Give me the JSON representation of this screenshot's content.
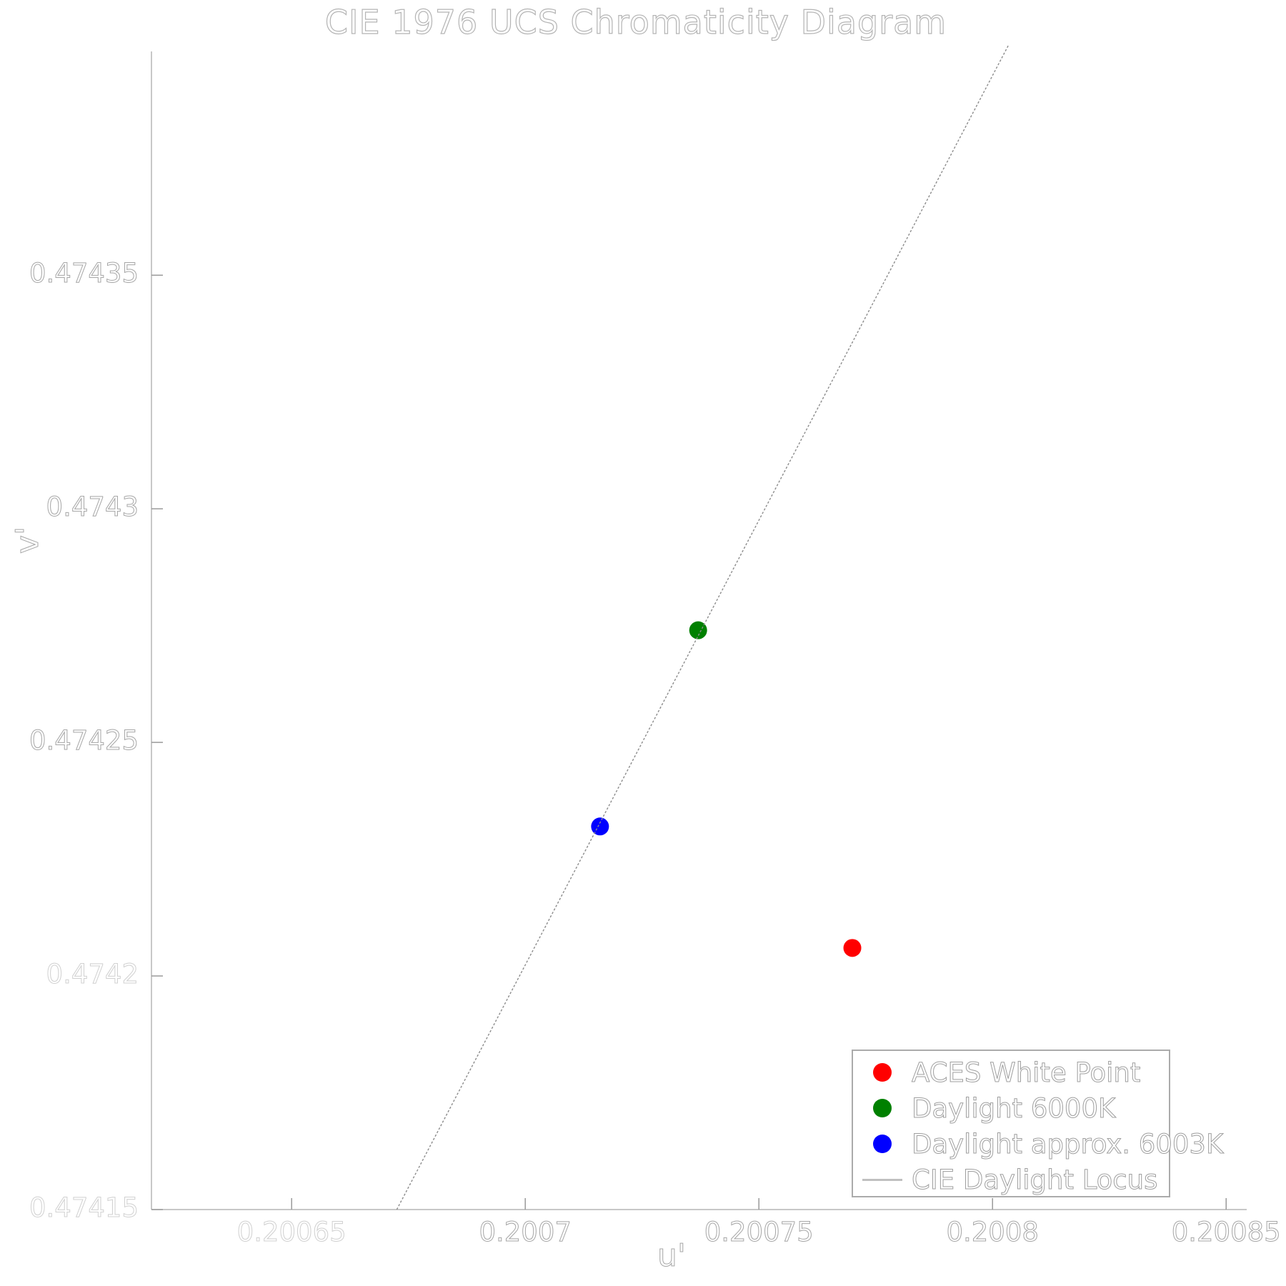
{
  "chart_data": {
    "type": "scatter",
    "title": "CIE 1976 UCS Chromaticity Diagram",
    "xlabel": "u'",
    "ylabel": "v'",
    "xlim": [
      0.20062,
      0.2008544
    ],
    "ylim": [
      0.47415,
      0.4743979
    ],
    "grid": false,
    "legend_position": "lower right",
    "x_ticks": {
      "values": [
        0.20065,
        0.2007,
        0.20075,
        0.2008,
        0.20085
      ],
      "labels": [
        "0.20065",
        "0.2007",
        "0.20075",
        "0.2008",
        "0.20085"
      ]
    },
    "y_ticks": {
      "values": [
        0.47435,
        0.4743,
        0.47425,
        0.4742,
        0.47415
      ],
      "labels": [
        "0.47435",
        "0.4743",
        "0.47425",
        "0.4742",
        "0.47415"
      ]
    },
    "series": [
      {
        "name": "ACES White Point",
        "type": "scatter",
        "color": "#ff0000",
        "points": [
          {
            "u": 0.20077,
            "v": 0.474206
          }
        ]
      },
      {
        "name": "Daylight 6000K",
        "type": "scatter",
        "color": "#008000",
        "points": [
          {
            "u": 0.200737,
            "v": 0.474274
          }
        ]
      },
      {
        "name": "Daylight approx. 6003K",
        "type": "scatter",
        "color": "#0000ff",
        "points": [
          {
            "u": 0.200716,
            "v": 0.474232
          }
        ]
      },
      {
        "name": "CIE Daylight Locus",
        "type": "line",
        "color": "#8c8c8c",
        "points": [
          {
            "u": 0.2006725,
            "v": 0.47415
          },
          {
            "u": 0.2008035,
            "v": 0.4743994
          }
        ]
      }
    ]
  }
}
